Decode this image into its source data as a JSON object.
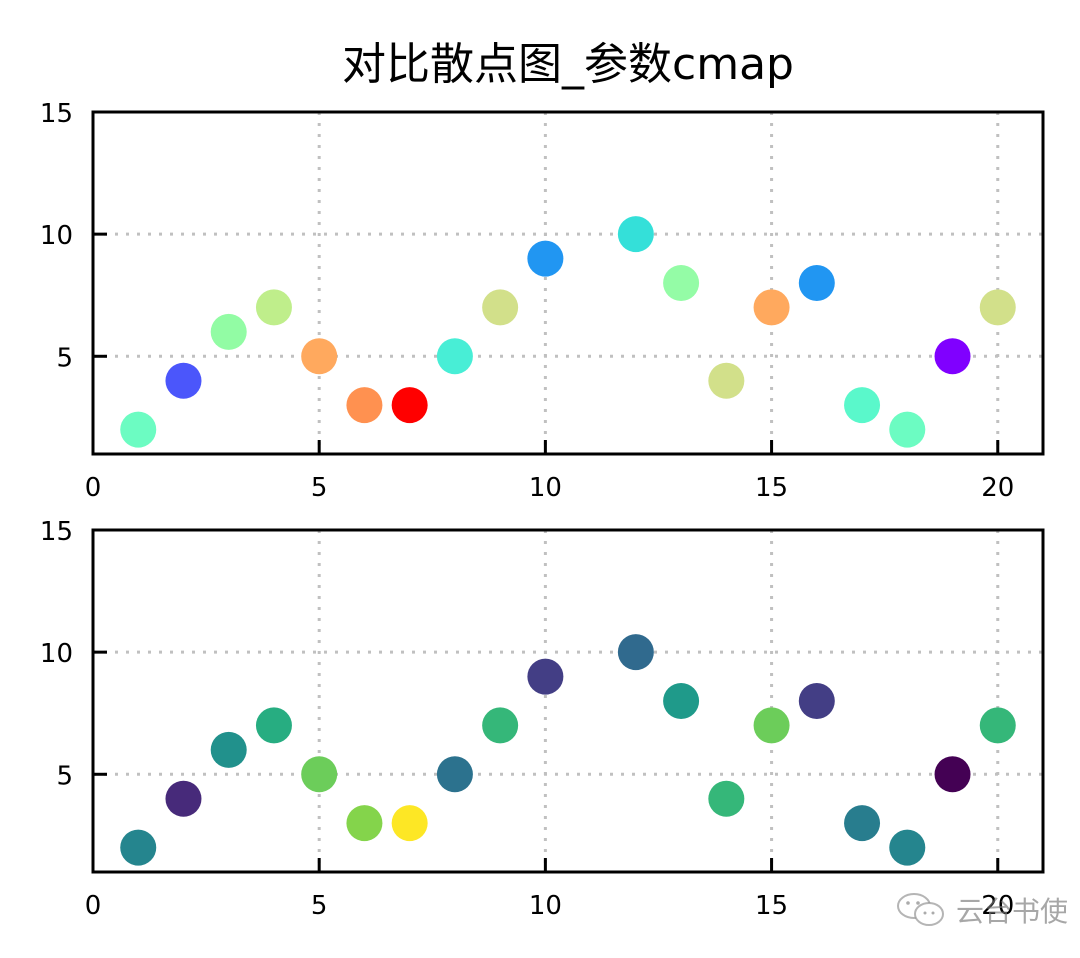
{
  "title": "对比散点图_参数cmap",
  "watermark": {
    "icon": "wechat-icon",
    "text": "云台书使"
  },
  "chart_data": [
    {
      "type": "scatter",
      "title": "对比散点图_参数cmap",
      "subplot": "top",
      "colormap": "rainbow",
      "xlabel": "",
      "ylabel": "",
      "xlim": [
        0,
        21
      ],
      "ylim": [
        1,
        15
      ],
      "xticks": [
        0,
        5,
        10,
        15,
        20
      ],
      "yticks": [
        5,
        10,
        15
      ],
      "grid": {
        "on": true,
        "style": "dotted",
        "color": "#c0c0c0"
      },
      "x": [
        1,
        2,
        3,
        4,
        5,
        6,
        7,
        8,
        9,
        10,
        12,
        13,
        14,
        15,
        16,
        17,
        18,
        19,
        20
      ],
      "y": [
        2,
        4,
        6,
        7,
        5,
        3,
        3,
        5,
        7,
        9,
        10,
        8,
        4,
        7,
        8,
        3,
        2,
        5,
        7
      ],
      "colors": [
        "#6cfcc2",
        "#4b56fb",
        "#92fca4",
        "#bfee8b",
        "#ffa95e",
        "#ff9150",
        "#ff0000",
        "#48eed6",
        "#d2e08a",
        "#2196f2",
        "#34e0d9",
        "#94fca6",
        "#d2e08a",
        "#ffa95e",
        "#2196f2",
        "#5af8cb",
        "#6cfcc2",
        "#8000ff",
        "#d2e08a"
      ]
    },
    {
      "type": "scatter",
      "subplot": "bottom",
      "colormap": "viridis",
      "xlabel": "",
      "ylabel": "",
      "xlim": [
        0,
        21
      ],
      "ylim": [
        1,
        15
      ],
      "xticks": [
        0,
        5,
        10,
        15,
        20
      ],
      "yticks": [
        5,
        10,
        15
      ],
      "grid": {
        "on": true,
        "style": "dotted",
        "color": "#c0c0c0"
      },
      "x": [
        1,
        2,
        3,
        4,
        5,
        6,
        7,
        8,
        9,
        10,
        12,
        13,
        14,
        15,
        16,
        17,
        18,
        19,
        20
      ],
      "y": [
        2,
        4,
        6,
        7,
        5,
        3,
        3,
        5,
        7,
        9,
        10,
        8,
        4,
        7,
        8,
        3,
        2,
        5,
        7
      ],
      "colors": [
        "#25858e",
        "#472a7a",
        "#21918c",
        "#27ad81",
        "#6ccd5a",
        "#84d44b",
        "#fde725",
        "#2c728e",
        "#35b779",
        "#433e85",
        "#306a8e",
        "#1f9a8a",
        "#35b779",
        "#6ccd5a",
        "#433e85",
        "#287d8e",
        "#25858e",
        "#440154",
        "#35b779"
      ]
    }
  ]
}
